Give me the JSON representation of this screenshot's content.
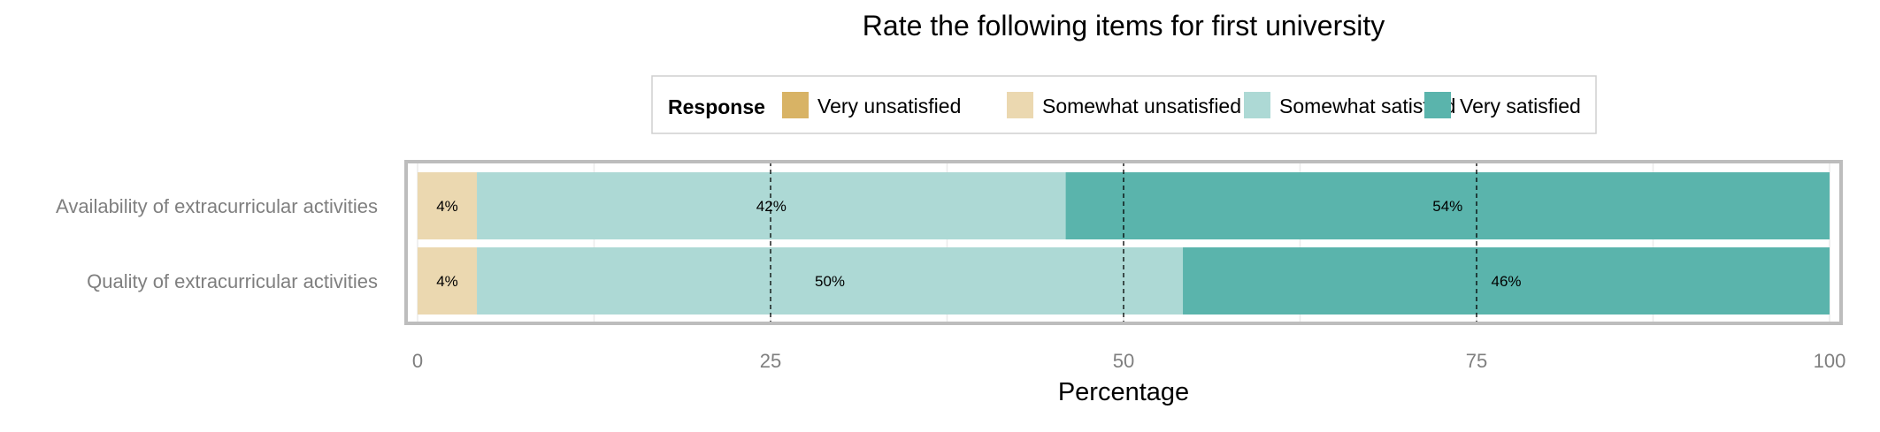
{
  "chart_data": {
    "type": "bar",
    "orientation": "horizontal",
    "stacked": true,
    "title": "Rate the following items for first university",
    "xlabel": "Percentage",
    "ylabel": "",
    "xlim": [
      0,
      100
    ],
    "x_ticks": [
      "0",
      "25",
      "50",
      "75",
      "100"
    ],
    "reference_lines": [
      25,
      50,
      75
    ],
    "grid": true,
    "legend": {
      "title": "Response",
      "position": "top",
      "entries": [
        "Very unsatisfied",
        "Somewhat unsatisfied",
        "Somewhat satisfied",
        "Very satisfied"
      ]
    },
    "categories": [
      "Availability of extracurricular activities",
      "Quality of extracurricular activities"
    ],
    "series": [
      {
        "name": "Very unsatisfied",
        "color": "#D8B365",
        "values": [
          0,
          0
        ],
        "labels": [
          "",
          ""
        ]
      },
      {
        "name": "Somewhat unsatisfied",
        "color": "#EBD8B0",
        "values": [
          4.2,
          4.2
        ],
        "labels": [
          "4%",
          "4%"
        ]
      },
      {
        "name": "Somewhat satisfied",
        "color": "#ADD9D5",
        "values": [
          41.7,
          50
        ],
        "labels": [
          "42%",
          "50%"
        ]
      },
      {
        "name": "Very satisfied",
        "color": "#5AB4AC",
        "values": [
          54.1,
          45.8
        ],
        "labels": [
          "54%",
          "46%"
        ]
      }
    ]
  }
}
